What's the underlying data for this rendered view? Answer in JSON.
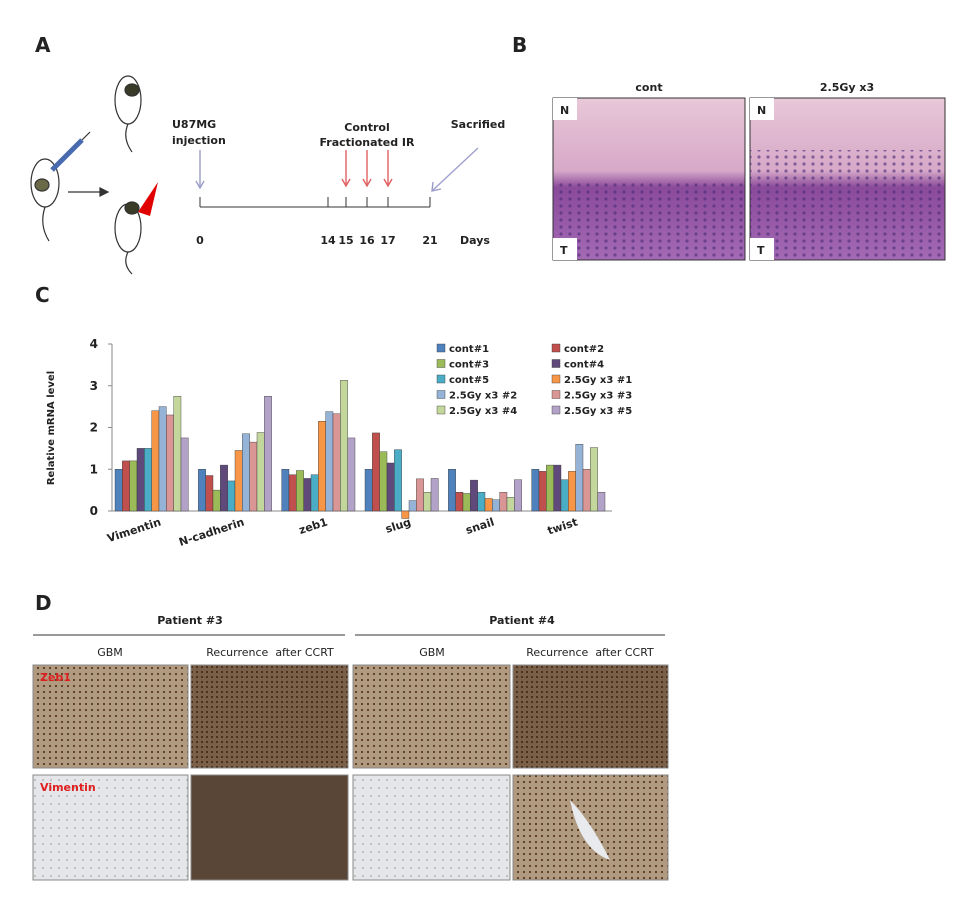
{
  "panel_a": {
    "letter": "A",
    "injection_label": [
      "U87MG",
      "injection"
    ],
    "ir_label": [
      "Control",
      "Fractionated IR"
    ],
    "end_label": "Sacrified",
    "days": [
      0,
      14,
      15,
      16,
      17,
      21
    ],
    "unit": "Days"
  },
  "panel_b": {
    "letter": "B",
    "columns": [
      "cont",
      "2.5Gy x3"
    ],
    "normal": "N",
    "tumor": "T"
  },
  "panel_c": {
    "letter": "C"
  },
  "chart_data": {
    "type": "bar",
    "y_label": "Relative mRNA level",
    "categories": [
      "Vimentin",
      "N-cadherin",
      "zeb1",
      "slug",
      "snail",
      "twist"
    ],
    "ylim": [
      0,
      4
    ],
    "yticks": [
      0,
      1,
      2,
      3,
      4
    ],
    "series": [
      {
        "name": "cont#1",
        "color": "#4f81bd",
        "values": [
          1.0,
          1.0,
          1.0,
          1.0,
          1.0,
          1.0
        ]
      },
      {
        "name": "cont#2",
        "color": "#c0504d",
        "values": [
          1.2,
          0.85,
          0.87,
          1.87,
          0.45,
          0.95
        ]
      },
      {
        "name": "cont#3",
        "color": "#9bbb59",
        "values": [
          1.2,
          0.5,
          0.97,
          1.42,
          0.42,
          1.1
        ]
      },
      {
        "name": "cont#4",
        "color": "#604a7b",
        "values": [
          1.5,
          1.1,
          0.78,
          1.15,
          0.74,
          1.1
        ]
      },
      {
        "name": "cont#5",
        "color": "#4bacc6",
        "values": [
          1.5,
          0.72,
          0.87,
          1.47,
          0.45,
          0.75
        ]
      },
      {
        "name": "2.5Gy x3 #1",
        "color": "#f79646",
        "values": [
          2.4,
          1.45,
          2.15,
          -0.18,
          0.3,
          0.95
        ]
      },
      {
        "name": "2.5Gy x3 #2",
        "color": "#95b3d7",
        "values": [
          2.5,
          1.85,
          2.38,
          0.25,
          0.27,
          1.6
        ]
      },
      {
        "name": "2.5Gy x3 #3",
        "color": "#d99694",
        "values": [
          2.3,
          1.65,
          2.33,
          0.77,
          0.45,
          1.0
        ]
      },
      {
        "name": "2.5Gy x3 #4",
        "color": "#c3d69b",
        "values": [
          2.75,
          1.88,
          3.13,
          0.45,
          0.33,
          1.52
        ]
      },
      {
        "name": "2.5Gy x3 #5",
        "color": "#b3a2c7",
        "values": [
          1.75,
          2.75,
          1.75,
          0.78,
          0.75,
          0.45
        ]
      }
    ]
  },
  "panel_d": {
    "letter": "D",
    "patients": [
      "Patient #3",
      "Patient #4"
    ],
    "columns": [
      "GBM",
      "Recurrence  after CCRT",
      "GBM",
      "Recurrence  after CCRT"
    ],
    "rows": [
      "Zeb1",
      "Vimentin"
    ]
  }
}
